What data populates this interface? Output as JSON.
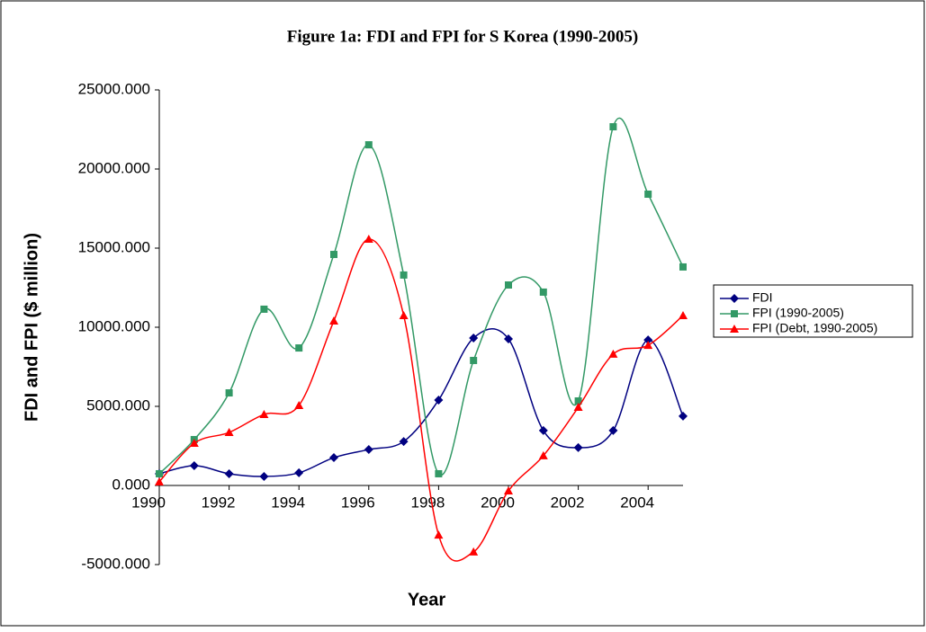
{
  "chart_data": {
    "type": "line",
    "title": "Figure 1a: FDI and FPI for S Korea (1990-2005)",
    "x_label": "Year",
    "y_label": "FDI and FPI ($ million)",
    "x": [
      1990,
      1991,
      1992,
      1993,
      1994,
      1995,
      1996,
      1997,
      1998,
      1999,
      2000,
      2001,
      2002,
      2003,
      2004,
      2005
    ],
    "xlim": [
      1990,
      2005
    ],
    "xticks": [
      1990,
      1992,
      1994,
      1996,
      1998,
      2000,
      2002,
      2004
    ],
    "ylim": [
      -5000,
      25000
    ],
    "yticks": [
      {
        "value": -5000,
        "label": "-5000.000"
      },
      {
        "value": 0,
        "label": "0.000"
      },
      {
        "value": 5000,
        "label": "5000.000"
      },
      {
        "value": 10000,
        "label": "10000.000"
      },
      {
        "value": 15000,
        "label": "15000.000"
      },
      {
        "value": 20000,
        "label": "20000.000"
      },
      {
        "value": 25000,
        "label": "25000.000"
      }
    ],
    "smooth": true,
    "grid": false,
    "legend": "right",
    "series": [
      {
        "name": "FDI",
        "color": "#000080",
        "marker": "diamond",
        "values": [
          740,
          1250,
          740,
          570,
          800,
          1760,
          2270,
          2780,
          5400,
          9320,
          9260,
          3470,
          2390,
          3470,
          9200,
          4380
        ]
      },
      {
        "name": "FPI (1990-2005)",
        "color": "#339966",
        "marker": "square",
        "values": [
          740,
          2900,
          5850,
          11140,
          8690,
          14600,
          21530,
          13300,
          740,
          7900,
          12670,
          12220,
          5340,
          22670,
          18410,
          13810
        ]
      },
      {
        "name": "FPI (Debt, 1990-2005)",
        "color": "#ff0000",
        "marker": "triangle",
        "values": [
          230,
          2670,
          3350,
          4490,
          5060,
          10400,
          15570,
          10740,
          -3130,
          -4200,
          -340,
          1880,
          4940,
          8300,
          8860,
          10740
        ]
      }
    ]
  }
}
